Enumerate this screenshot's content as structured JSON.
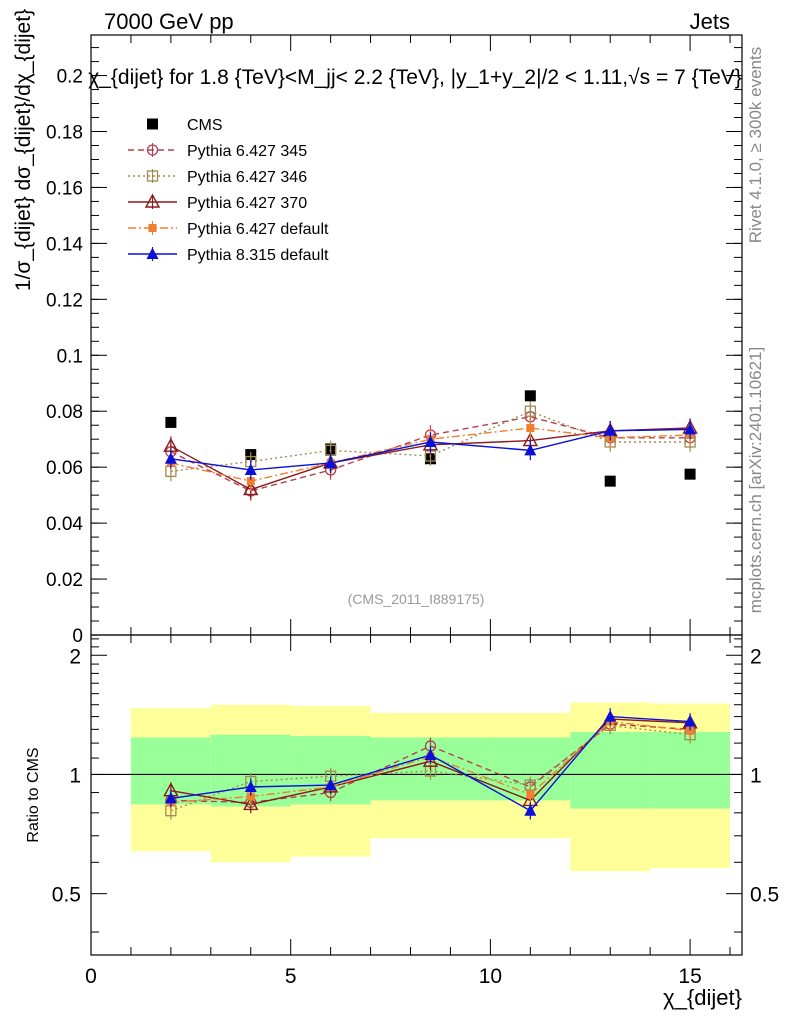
{
  "header": {
    "left": "7000 GeV pp",
    "right": "Jets",
    "title": "χ_{dijet} for 1.8 {TeV}<M_jj< 2.2 {TeV}, |y_1+y_2|/2 < 1.11,√s = 7 {TeV}",
    "watermark": "(CMS_2011_I889175)",
    "side_rivet": "Rivet 4.1.0, ≥ 300k events",
    "side_mcplots": "mcplots.cern.ch [arXiv:2401.10621]"
  },
  "colors": {
    "cms": "#000000",
    "p345": "#b5404f",
    "p346": "#a08b50",
    "p370": "#8b1a1a",
    "p6def": "#f08030",
    "p8def": "#0a10d8",
    "band_inner": "#99ff99",
    "band_outer": "#ffff99"
  },
  "chart_data": [
    {
      "type": "scatter",
      "panel": "main",
      "ylabel": "1/σ_{dijet} dσ_{dijet}/dχ_{dijet}",
      "xlim": [
        0,
        16.3
      ],
      "ylim": [
        0,
        0.2145
      ],
      "yticks": [
        0,
        0.02,
        0.04,
        0.06,
        0.08,
        0.1,
        0.12,
        0.14,
        0.16,
        0.18,
        0.2
      ],
      "ytick_labels": [
        "0",
        "0.02",
        "0.04",
        "0.06",
        "0.08",
        "0.1",
        "0.12",
        "0.14",
        "0.16",
        "0.18",
        "0.2"
      ],
      "x": [
        2,
        4,
        6,
        8.5,
        11,
        13,
        15
      ],
      "series": [
        {
          "name": "CMS",
          "key": "cms",
          "values": [
            0.076,
            0.0645,
            0.0665,
            0.063,
            0.0855,
            0.055,
            0.0575
          ]
        },
        {
          "name": "Pythia 6.427 345",
          "key": "p345",
          "values": [
            0.0655,
            0.0515,
            0.059,
            0.0715,
            0.078,
            0.0705,
            0.0705
          ]
        },
        {
          "name": "Pythia 6.427 346",
          "key": "p346",
          "values": [
            0.0585,
            0.062,
            0.066,
            0.064,
            0.08,
            0.069,
            0.069
          ]
        },
        {
          "name": "Pythia 6.427 370",
          "key": "p370",
          "values": [
            0.0675,
            0.052,
            0.0615,
            0.068,
            0.0695,
            0.073,
            0.074
          ]
        },
        {
          "name": "Pythia 6.427 default",
          "key": "p6def",
          "values": [
            0.0615,
            0.055,
            0.0615,
            0.07,
            0.074,
            0.0705,
            0.0715
          ]
        },
        {
          "name": "Pythia 8.315 default",
          "key": "p8def",
          "values": [
            0.063,
            0.059,
            0.0615,
            0.069,
            0.066,
            0.073,
            0.0735
          ]
        }
      ]
    },
    {
      "type": "scatter",
      "panel": "ratio",
      "ylabel": "Ratio to CMS",
      "xlabel": "χ_{dijet}",
      "xlim": [
        0,
        16.3
      ],
      "ylim": [
        0.35,
        2.25
      ],
      "yticks": [
        0.5,
        1,
        2
      ],
      "ytick_labels": [
        "0.5",
        "1",
        "2"
      ],
      "xticks": [
        0,
        5,
        10,
        15
      ],
      "xtick_labels": [
        "0",
        "5",
        "10",
        "15"
      ],
      "x": [
        2,
        4,
        6,
        8.5,
        11,
        13,
        15
      ],
      "bins": [
        [
          1,
          3
        ],
        [
          3,
          5
        ],
        [
          5,
          7
        ],
        [
          7,
          10
        ],
        [
          10,
          12
        ],
        [
          12,
          14
        ],
        [
          14,
          16
        ]
      ],
      "band_inner": [
        [
          0.84,
          1.24
        ],
        [
          0.83,
          1.26
        ],
        [
          0.84,
          1.25
        ],
        [
          0.86,
          1.24
        ],
        [
          0.86,
          1.24
        ],
        [
          0.82,
          1.28
        ],
        [
          0.82,
          1.28
        ]
      ],
      "band_outer": [
        [
          0.64,
          1.47
        ],
        [
          0.6,
          1.5
        ],
        [
          0.62,
          1.49
        ],
        [
          0.69,
          1.43
        ],
        [
          0.69,
          1.43
        ],
        [
          0.57,
          1.52
        ],
        [
          0.58,
          1.51
        ]
      ],
      "series": [
        {
          "name": "Pythia 6.427 345",
          "key": "p345",
          "values": [
            0.86,
            0.85,
            0.9,
            1.18,
            0.93,
            1.34,
            1.3
          ]
        },
        {
          "name": "Pythia 6.427 346",
          "key": "p346",
          "values": [
            0.81,
            0.96,
            0.99,
            1.02,
            0.94,
            1.33,
            1.26
          ]
        },
        {
          "name": "Pythia 6.427 370",
          "key": "p370",
          "values": [
            0.91,
            0.84,
            0.93,
            1.08,
            0.86,
            1.38,
            1.35
          ]
        },
        {
          "name": "Pythia 6.427 default",
          "key": "p6def",
          "values": [
            0.85,
            0.88,
            0.93,
            1.11,
            0.89,
            1.36,
            1.29
          ]
        },
        {
          "name": "Pythia 8.315 default",
          "key": "p8def",
          "values": [
            0.87,
            0.93,
            0.94,
            1.12,
            0.81,
            1.4,
            1.36
          ]
        }
      ]
    }
  ]
}
